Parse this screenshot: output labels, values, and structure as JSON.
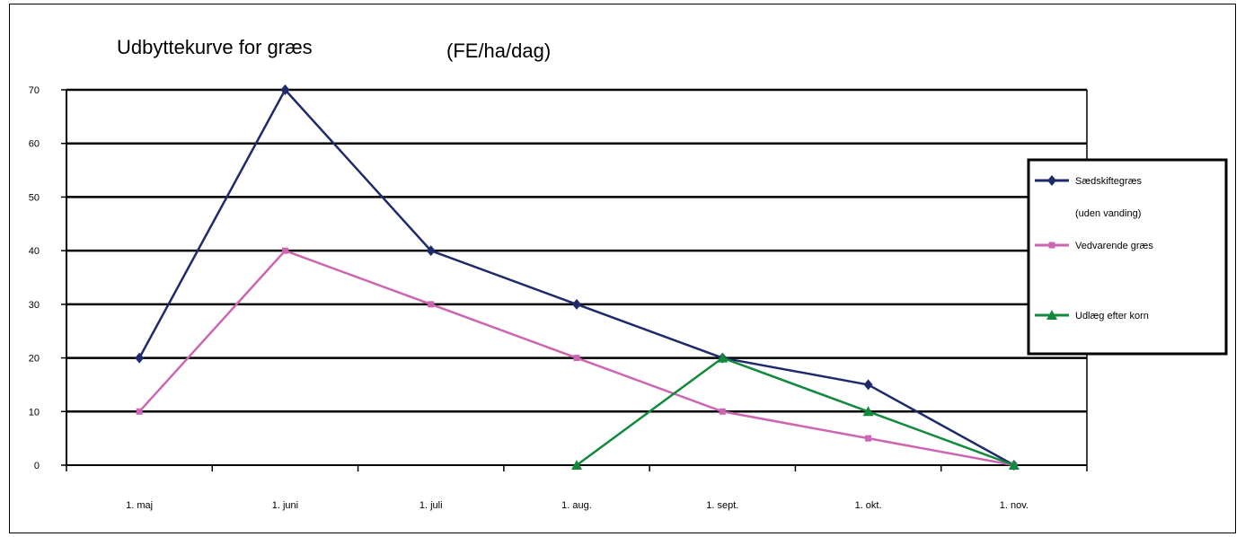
{
  "chart_data": {
    "type": "line",
    "title": "Udbyttekurve for græs",
    "unit_label": "(FE/ha/dag)",
    "categories": [
      "1. maj",
      "1. juni",
      "1. juli",
      "1. aug.",
      "1. sept.",
      "1. okt.",
      "1. nov."
    ],
    "y_ticks": [
      0,
      10,
      20,
      30,
      40,
      50,
      60,
      70
    ],
    "ylim": [
      0,
      70
    ],
    "grid": "horizontal",
    "legend_position": "right",
    "series": [
      {
        "name": "Sædskiftegræs",
        "name_line2": "(uden vanding)",
        "color": "#1f2a6b",
        "marker": "diamond",
        "values": [
          20,
          70,
          40,
          30,
          20,
          15,
          0
        ]
      },
      {
        "name": "Vedvarende græs",
        "color": "#cc66b3",
        "marker": "square",
        "values": [
          10,
          40,
          30,
          20,
          10,
          5,
          0
        ]
      },
      {
        "name": "Udlæg efter korn",
        "color": "#118a3c",
        "marker": "triangle",
        "values": [
          null,
          null,
          null,
          0,
          20,
          10,
          0
        ]
      }
    ]
  }
}
